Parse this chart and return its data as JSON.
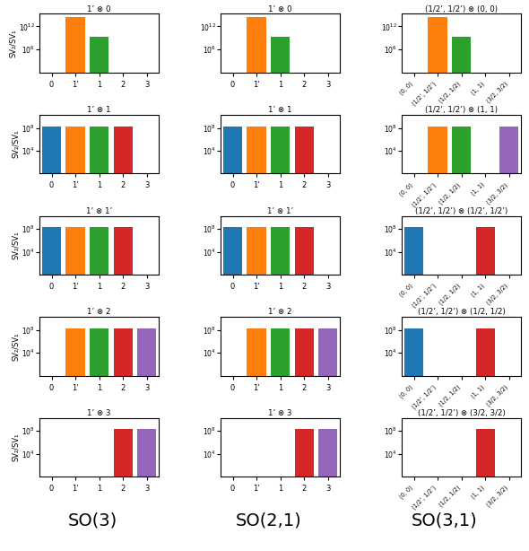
{
  "col_labels": [
    "SO(3)",
    "SO(2,1)",
    "SO(3,1)"
  ],
  "col1_titles": [
    "1’ ⊗ 0",
    "1’ ⊗ 1",
    "1’ ⊗ 1’",
    "1’ ⊗ 2",
    "1’ ⊗ 3"
  ],
  "col2_titles": [
    "1’ ⊗ 0",
    "1’ ⊗ 1",
    "1’ ⊗ 1’",
    "1’ ⊗ 2",
    "1’ ⊗ 3"
  ],
  "col3_titles": [
    "(1/2’, 1/2’) ⊗ (0, 0)",
    "(1/2’, 1/2’) ⊗ (1, 1)",
    "(1/2’, 1/2’) ⊗ (1/2’, 1/2’)",
    "(1/2’, 1/2’) ⊗ (1/2, 1/2)",
    "(1/2’, 1/2’) ⊗ (3/2, 3/2)"
  ],
  "col12_xlabels": [
    "0",
    "1’",
    "1",
    "2",
    "3"
  ],
  "col3_xlabels": [
    "(0, 0)",
    "(1/2’, 1/2’)",
    "(1/2, 1/2)",
    "(1, 1)",
    "(3/2, 3/2)"
  ],
  "colors": [
    "#1f77b4",
    "#ff7f0e",
    "#2ca02c",
    "#d62728",
    "#9467bd"
  ],
  "ylabel": "SV₂/SV₁",
  "bar_data_12": [
    [
      1.0,
      300000000000000.0,
      2000000000.0,
      1.0,
      1.0
    ],
    [
      200000000.0,
      200000000.0,
      200000000.0,
      200000000.0,
      1.0
    ],
    [
      200000000.0,
      200000000.0,
      200000000.0,
      200000000.0,
      1.0
    ],
    [
      1.0,
      200000000.0,
      200000000.0,
      200000000.0,
      200000000.0
    ],
    [
      1.0,
      1.0,
      1.0,
      200000000.0,
      200000000.0
    ]
  ],
  "bar_data_col3": [
    [
      1.0,
      300000000000000.0,
      2000000000.0,
      1.0,
      1.0
    ],
    [
      1.0,
      200000000.0,
      200000000.0,
      1.0,
      200000000.0
    ],
    [
      200000000.0,
      1.0,
      1.0,
      200000000.0,
      1.0
    ],
    [
      200000000.0,
      1.0,
      1.0,
      200000000.0,
      1.0
    ],
    [
      1.0,
      1.0,
      1.0,
      200000000.0,
      1.0
    ]
  ],
  "ylim_tall": [
    1.0,
    2000000000000000.0
  ],
  "yticks_tall": [
    1000000.0,
    1000000000000.0
  ],
  "ylim_short": [
    1.0,
    20000000000.0
  ],
  "yticks_short": [
    10000.0,
    100000000.0
  ]
}
